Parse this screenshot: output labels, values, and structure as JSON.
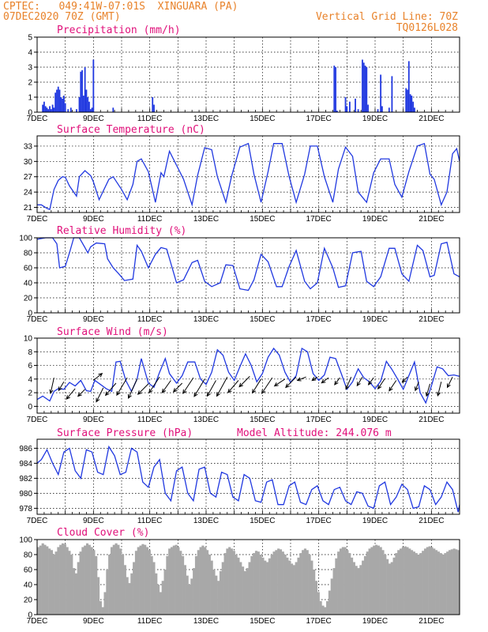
{
  "header": {
    "station_line": "CPTEC:   049:41W-07:01S  XINGUARA (PA)",
    "date_line": "07DEC2020 70Z (GMT)",
    "grid_line": "Vertical Grid Line: 70Z",
    "code": "TQ0126L028"
  },
  "colors": {
    "series": "#2038e0",
    "header": "#e8822a",
    "title": "#e0107a",
    "cloud": "#a8a8a8"
  },
  "chart_data": [
    {
      "id": "precip",
      "type": "bar",
      "title": "Precipitation (mm/h)",
      "x_unit": "days since 7DEC 00Z",
      "xlim": [
        0,
        15
      ],
      "ylim": [
        0,
        5
      ],
      "yticks": [
        0,
        1,
        2,
        3,
        4,
        5
      ],
      "xticks": [
        "7DEC",
        "9DEC",
        "11DEC",
        "13DEC",
        "15DEC",
        "17DEC",
        "19DEC",
        "21DEC"
      ],
      "x": [
        0.2,
        0.25,
        0.3,
        0.35,
        0.4,
        0.45,
        0.5,
        0.55,
        0.6,
        0.65,
        0.7,
        0.75,
        0.8,
        0.85,
        0.9,
        0.95,
        1.0,
        1.1,
        1.2,
        1.4,
        1.5,
        1.55,
        1.6,
        1.65,
        1.7,
        1.75,
        1.8,
        1.85,
        1.9,
        1.95,
        2.0,
        2.7,
        4.1,
        4.15,
        10.55,
        10.6,
        10.65,
        10.95,
        11.0,
        11.1,
        11.3,
        11.4,
        11.55,
        11.6,
        11.65,
        11.7,
        11.75,
        12.1,
        12.2,
        12.25,
        12.5,
        12.6,
        13.1,
        13.15,
        13.2,
        13.25,
        13.3,
        13.35,
        13.4
      ],
      "values": [
        0.5,
        0.7,
        0.4,
        0.3,
        0.2,
        0.4,
        0.2,
        0.5,
        0.3,
        1.3,
        1.5,
        1.7,
        1.5,
        1.0,
        0.9,
        1.1,
        0.6,
        0.2,
        0.3,
        0.2,
        1.0,
        2.7,
        2.8,
        1.1,
        3.0,
        1.5,
        1.0,
        0.7,
        0.2,
        0.3,
        3.5,
        0.3,
        1.0,
        0.5,
        3.1,
        3.0,
        0.1,
        1.0,
        0.4,
        0.7,
        0.9,
        0.2,
        3.5,
        3.3,
        3.1,
        3.0,
        0.5,
        0.2,
        2.5,
        0.4,
        0.3,
        2.4,
        1.6,
        1.5,
        3.4,
        1.2,
        1.1,
        0.7,
        0.3
      ]
    },
    {
      "id": "temp",
      "type": "line",
      "title": "Surface Temperature (nC)",
      "xlim": [
        0,
        15
      ],
      "ylim": [
        20,
        35
      ],
      "yticks": [
        21,
        24,
        27,
        30,
        33
      ],
      "xticks": [
        "7DEC",
        "9DEC",
        "11DEC",
        "13DEC",
        "15DEC",
        "17DEC",
        "19DEC",
        "21DEC"
      ],
      "x": [
        0,
        0.15,
        0.35,
        0.45,
        0.6,
        0.75,
        0.9,
        1.0,
        1.15,
        1.4,
        1.5,
        1.7,
        1.9,
        2.0,
        2.2,
        2.55,
        2.7,
        3.0,
        3.2,
        3.4,
        3.55,
        3.7,
        3.95,
        4.2,
        4.4,
        4.5,
        4.7,
        5.2,
        5.5,
        5.7,
        5.95,
        6.2,
        6.4,
        6.7,
        6.9,
        7.2,
        7.5,
        7.7,
        7.95,
        8.2,
        8.4,
        8.7,
        8.95,
        9.2,
        9.5,
        9.7,
        9.95,
        10.2,
        10.5,
        10.7,
        10.95,
        11.2,
        11.4,
        11.7,
        11.95,
        12.2,
        12.5,
        12.7,
        12.95,
        13.2,
        13.5,
        13.75,
        13.95,
        14.1,
        14.35,
        14.55,
        14.75,
        14.9,
        15.0
      ],
      "values": [
        21.5,
        21.5,
        20.8,
        20.6,
        24.5,
        26.3,
        27.0,
        26.9,
        25.2,
        23.2,
        27.0,
        28.2,
        27.2,
        26.0,
        22.5,
        26.5,
        27.0,
        24.5,
        22.5,
        25.5,
        30.0,
        30.5,
        28.0,
        22.0,
        27.8,
        27.0,
        32.0,
        26.5,
        21.5,
        27.3,
        32.7,
        32.3,
        27.0,
        22.0,
        27.0,
        32.8,
        33.5,
        27.5,
        22.0,
        28.0,
        33.5,
        33.5,
        27.0,
        22.0,
        27.5,
        33.0,
        33.0,
        27.0,
        22.0,
        28.5,
        32.8,
        31.0,
        24.0,
        22.0,
        27.8,
        30.5,
        30.5,
        25.5,
        23.0,
        28.0,
        33.0,
        33.5,
        27.5,
        26.5,
        21.5,
        24.0,
        31.5,
        32.5,
        30.0
      ]
    },
    {
      "id": "rh",
      "type": "line",
      "title": "Relative Humidity (%)",
      "xlim": [
        0,
        15
      ],
      "ylim": [
        0,
        100
      ],
      "yticks": [
        0,
        20,
        40,
        60,
        80,
        100
      ],
      "xticks": [
        "7DEC",
        "9DEC",
        "11DEC",
        "13DEC",
        "15DEC",
        "17DEC",
        "19DEC",
        "21DEC"
      ],
      "x": [
        0,
        0.3,
        0.55,
        0.7,
        0.8,
        1.0,
        1.15,
        1.3,
        1.5,
        1.7,
        1.8,
        1.9,
        2.1,
        2.4,
        2.5,
        2.7,
        2.9,
        3.1,
        3.4,
        3.55,
        3.7,
        3.95,
        4.2,
        4.4,
        4.6,
        4.95,
        5.2,
        5.5,
        5.7,
        5.95,
        6.2,
        6.5,
        6.7,
        6.95,
        7.2,
        7.5,
        7.7,
        7.95,
        8.2,
        8.5,
        8.7,
        8.95,
        9.2,
        9.5,
        9.7,
        9.95,
        10.2,
        10.5,
        10.7,
        10.95,
        11.2,
        11.5,
        11.7,
        11.95,
        12.2,
        12.5,
        12.7,
        12.95,
        13.2,
        13.5,
        13.7,
        13.95,
        14.1,
        14.35,
        14.55,
        14.8,
        15.0
      ],
      "values": [
        98,
        100,
        100,
        92,
        60,
        62,
        80,
        100,
        100,
        87,
        80,
        88,
        93,
        92,
        72,
        60,
        52,
        43,
        45,
        90,
        82,
        60,
        78,
        87,
        85,
        40,
        44,
        67,
        70,
        42,
        35,
        40,
        64,
        63,
        32,
        30,
        44,
        78,
        68,
        35,
        35,
        62,
        83,
        42,
        32,
        40,
        86,
        60,
        34,
        36,
        80,
        82,
        42,
        35,
        48,
        86,
        86,
        52,
        42,
        90,
        83,
        48,
        50,
        92,
        94,
        52,
        48
      ]
    },
    {
      "id": "wind",
      "type": "line",
      "title": "Surface Wind (m/s)",
      "xlim": [
        0,
        15
      ],
      "ylim": [
        -1,
        10
      ],
      "yticks": [
        0,
        2,
        4,
        6,
        8,
        10
      ],
      "xticks": [
        "7DEC",
        "9DEC",
        "11DEC",
        "13DEC",
        "15DEC",
        "17DEC",
        "19DEC",
        "21DEC"
      ],
      "x": [
        0,
        0.2,
        0.45,
        0.6,
        0.75,
        0.95,
        1.15,
        1.35,
        1.55,
        1.75,
        1.9,
        2.05,
        2.25,
        2.45,
        2.65,
        2.8,
        2.95,
        3.15,
        3.35,
        3.55,
        3.7,
        3.95,
        4.15,
        4.35,
        4.55,
        4.7,
        4.95,
        5.15,
        5.35,
        5.6,
        5.8,
        6.0,
        6.2,
        6.4,
        6.6,
        6.8,
        7.0,
        7.2,
        7.4,
        7.6,
        7.8,
        8.0,
        8.2,
        8.4,
        8.6,
        8.8,
        9.0,
        9.2,
        9.4,
        9.6,
        9.8,
        10.0,
        10.2,
        10.4,
        10.6,
        10.8,
        11.0,
        11.2,
        11.4,
        11.6,
        11.8,
        12.0,
        12.2,
        12.4,
        12.6,
        12.8,
        13.0,
        13.2,
        13.4,
        13.6,
        13.8,
        14.0,
        14.2,
        14.4,
        14.6,
        14.8,
        15.0
      ],
      "values": [
        1.0,
        1.5,
        0.8,
        2.2,
        2.6,
        2.5,
        3.5,
        3.0,
        3.8,
        2.3,
        2.2,
        3.8,
        3.2,
        2.6,
        2.2,
        6.5,
        6.6,
        3.8,
        2.2,
        4.0,
        7.0,
        3.4,
        2.8,
        5.0,
        7.0,
        4.8,
        3.4,
        4.5,
        6.5,
        6.5,
        4.0,
        3.2,
        5.0,
        8.3,
        7.5,
        5.0,
        3.8,
        5.8,
        7.7,
        6.0,
        3.6,
        4.8,
        7.2,
        8.5,
        7.5,
        5.0,
        3.5,
        4.5,
        8.5,
        8.0,
        4.8,
        3.8,
        4.6,
        7.2,
        7.0,
        4.8,
        2.5,
        3.6,
        5.5,
        4.2,
        3.6,
        2.6,
        3.7,
        6.6,
        5.4,
        4.0,
        2.5,
        4.5,
        6.5,
        2.0,
        0.5,
        3.0,
        5.8,
        5.5,
        4.5,
        4.6,
        4.4
      ],
      "arrows_x": [
        0.6,
        0.95,
        1.35,
        1.7,
        2.0,
        2.35,
        2.8,
        3.2,
        3.55,
        3.95,
        4.35,
        4.75,
        5.15,
        5.55,
        5.95,
        6.35,
        6.75,
        7.15,
        7.55,
        7.95,
        8.35,
        8.8,
        9.2,
        9.55,
        9.95,
        10.35,
        10.75,
        11.15,
        11.55,
        11.95,
        12.35,
        12.75,
        13.15,
        13.55,
        13.95,
        14.35,
        14.75
      ],
      "arrows_y": [
        4.2,
        3.6,
        2.6,
        2.5,
        3.8,
        2.7,
        3.4,
        4.2,
        4.0,
        3.3,
        4.3,
        3.8,
        3.4,
        4.2,
        4.0,
        3.8,
        4.3,
        3.8,
        4.4,
        4.0,
        4.2,
        4.0,
        4.3,
        4.3,
        4.3,
        4.2,
        4.2,
        4.3,
        4.3,
        4.2,
        4.1,
        3.8,
        4.3,
        3.6,
        3.3,
        3.6,
        4.3
      ],
      "arrows_u": [
        -0.2,
        -0.3,
        -0.5,
        -0.4,
        0.5,
        -0.4,
        -0.6,
        -0.6,
        -0.5,
        -0.6,
        -0.6,
        -0.5,
        -0.5,
        -0.6,
        -0.6,
        -0.5,
        -0.6,
        -0.6,
        -0.6,
        -0.5,
        -0.6,
        -0.6,
        -0.6,
        -0.5,
        -0.3,
        -0.4,
        -0.3,
        -0.3,
        -0.3,
        -0.3,
        -0.4,
        -0.4,
        -0.3,
        -0.2,
        -0.2,
        -0.2,
        -0.3
      ],
      "arrows_v": [
        -0.9,
        -0.5,
        -0.6,
        -0.4,
        0.4,
        -0.8,
        -0.7,
        -1.0,
        -1.1,
        -0.6,
        -0.9,
        -0.7,
        -0.5,
        -0.9,
        -1.0,
        -0.9,
        -1.1,
        -0.7,
        -0.6,
        -0.8,
        -0.9,
        -0.4,
        -0.6,
        -0.2,
        -0.2,
        -0.3,
        -0.4,
        -0.7,
        -0.5,
        -0.4,
        -0.6,
        -0.6,
        -0.3,
        -0.5,
        -0.7,
        -0.8,
        -0.6
      ]
    },
    {
      "id": "pres",
      "type": "line",
      "title": "Surface Pressure (hPa)",
      "subtitle": "Model Altitude: 244.076 m",
      "xlim": [
        0,
        15
      ],
      "ylim": [
        977.2,
        987.2
      ],
      "yticks": [
        978,
        980,
        982,
        984,
        986
      ],
      "xticks": [
        "7DEC",
        "9DEC",
        "11DEC",
        "13DEC",
        "15DEC",
        "17DEC",
        "19DEC",
        "21DEC"
      ],
      "x": [
        0,
        0.15,
        0.35,
        0.55,
        0.75,
        0.95,
        1.15,
        1.35,
        1.55,
        1.75,
        1.95,
        2.15,
        2.35,
        2.55,
        2.75,
        2.95,
        3.15,
        3.35,
        3.55,
        3.75,
        3.95,
        4.15,
        4.35,
        4.55,
        4.75,
        4.95,
        5.15,
        5.35,
        5.55,
        5.75,
        5.95,
        6.15,
        6.35,
        6.55,
        6.75,
        6.95,
        7.15,
        7.35,
        7.55,
        7.75,
        7.95,
        8.15,
        8.35,
        8.55,
        8.75,
        8.95,
        9.15,
        9.35,
        9.55,
        9.75,
        9.95,
        10.15,
        10.35,
        10.55,
        10.75,
        10.95,
        11.15,
        11.35,
        11.55,
        11.75,
        11.95,
        12.15,
        12.35,
        12.55,
        12.75,
        12.95,
        13.15,
        13.35,
        13.55,
        13.75,
        13.95,
        14.15,
        14.35,
        14.55,
        14.75,
        14.95,
        15.0
      ],
      "values": [
        984.0,
        984.5,
        985.8,
        984.0,
        982.5,
        985.5,
        986.0,
        983.0,
        982.0,
        985.8,
        985.5,
        982.8,
        982.5,
        986.2,
        985.0,
        982.5,
        982.8,
        986.0,
        985.5,
        981.5,
        980.8,
        983.5,
        984.5,
        980.0,
        979.0,
        983.0,
        983.5,
        980.0,
        979.0,
        983.2,
        983.5,
        980.0,
        979.5,
        982.8,
        982.5,
        979.5,
        979.0,
        982.5,
        982.0,
        979.0,
        978.8,
        981.5,
        981.8,
        978.5,
        978.5,
        981.0,
        981.5,
        978.8,
        978.5,
        980.5,
        981.0,
        979.0,
        978.5,
        980.5,
        980.8,
        979.0,
        978.5,
        980.2,
        980.0,
        978.3,
        978.0,
        981.0,
        981.5,
        978.5,
        979.5,
        981.2,
        980.5,
        978.0,
        978.2,
        981.0,
        980.5,
        978.5,
        979.5,
        981.5,
        980.5,
        977.5,
        978.5
      ]
    },
    {
      "id": "cloud",
      "type": "bar",
      "title": "Cloud Cover (%)",
      "xlim": [
        0,
        15
      ],
      "ylim": [
        0,
        100
      ],
      "yticks": [
        0,
        20,
        40,
        60,
        80,
        100
      ],
      "xticks": [
        "7DEC",
        "9DEC",
        "11DEC",
        "13DEC",
        "15DEC",
        "17DEC",
        "19DEC",
        "21DEC"
      ],
      "values": [
        90,
        92,
        95,
        93,
        91,
        88,
        86,
        80,
        84,
        90,
        93,
        95,
        94,
        90,
        85,
        80,
        62,
        55,
        70,
        84,
        90,
        92,
        95,
        93,
        90,
        86,
        78,
        50,
        18,
        10,
        30,
        60,
        80,
        90,
        93,
        95,
        93,
        88,
        80,
        66,
        50,
        42,
        55,
        70,
        85,
        90,
        92,
        94,
        93,
        90,
        86,
        78,
        70,
        55,
        40,
        30,
        45,
        60,
        78,
        88,
        90,
        92,
        93,
        90,
        85,
        78,
        66,
        52,
        40,
        48,
        62,
        78,
        86,
        90,
        92,
        90,
        86,
        80,
        72,
        60,
        52,
        45,
        58,
        70,
        82,
        88,
        90,
        88,
        85,
        80,
        76,
        70,
        64,
        58,
        62,
        70,
        78,
        82,
        85,
        84,
        80,
        76,
        72,
        70,
        75,
        80,
        84,
        86,
        88,
        87,
        84,
        80,
        76,
        72,
        68,
        66,
        70,
        76,
        82,
        86,
        88,
        86,
        80,
        72,
        60,
        45,
        30,
        18,
        12,
        10,
        18,
        32,
        48,
        62,
        75,
        84,
        88,
        90,
        90,
        86,
        82,
        76,
        70,
        65,
        62,
        66,
        72,
        78,
        84,
        88,
        90,
        92,
        93,
        92,
        90,
        86,
        80,
        74,
        68,
        70,
        76,
        82,
        86,
        88,
        90,
        91,
        90,
        88,
        86,
        84,
        82,
        80,
        82,
        85,
        88,
        90,
        91,
        90,
        88,
        86,
        84,
        82,
        80,
        82,
        84,
        86,
        87,
        88,
        87,
        86
      ]
    }
  ]
}
